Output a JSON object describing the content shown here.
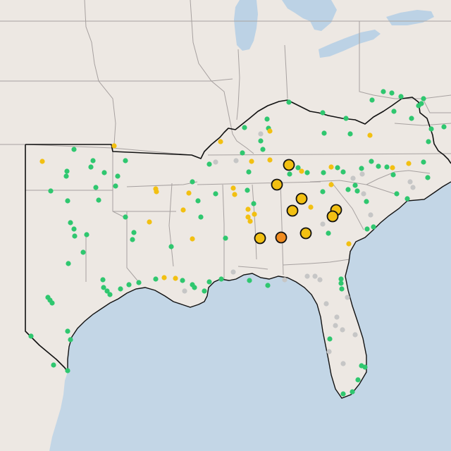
{
  "map": {
    "colors": {
      "land": "#ede8e3",
      "water": "#c3d6e6",
      "great_lakes": "#bcd2e5",
      "state_border": "#a7a1a0",
      "region_outline": "#111111",
      "good": "#2fc76f",
      "moderate": "#f2c012",
      "usg": "#f08c21",
      "no_data": "#c6c6c6"
    },
    "categories": [
      "good",
      "moderate",
      "usg",
      "no_data"
    ],
    "highlighted_category_counts": {
      "moderate": 10,
      "usg": 1
    }
  }
}
